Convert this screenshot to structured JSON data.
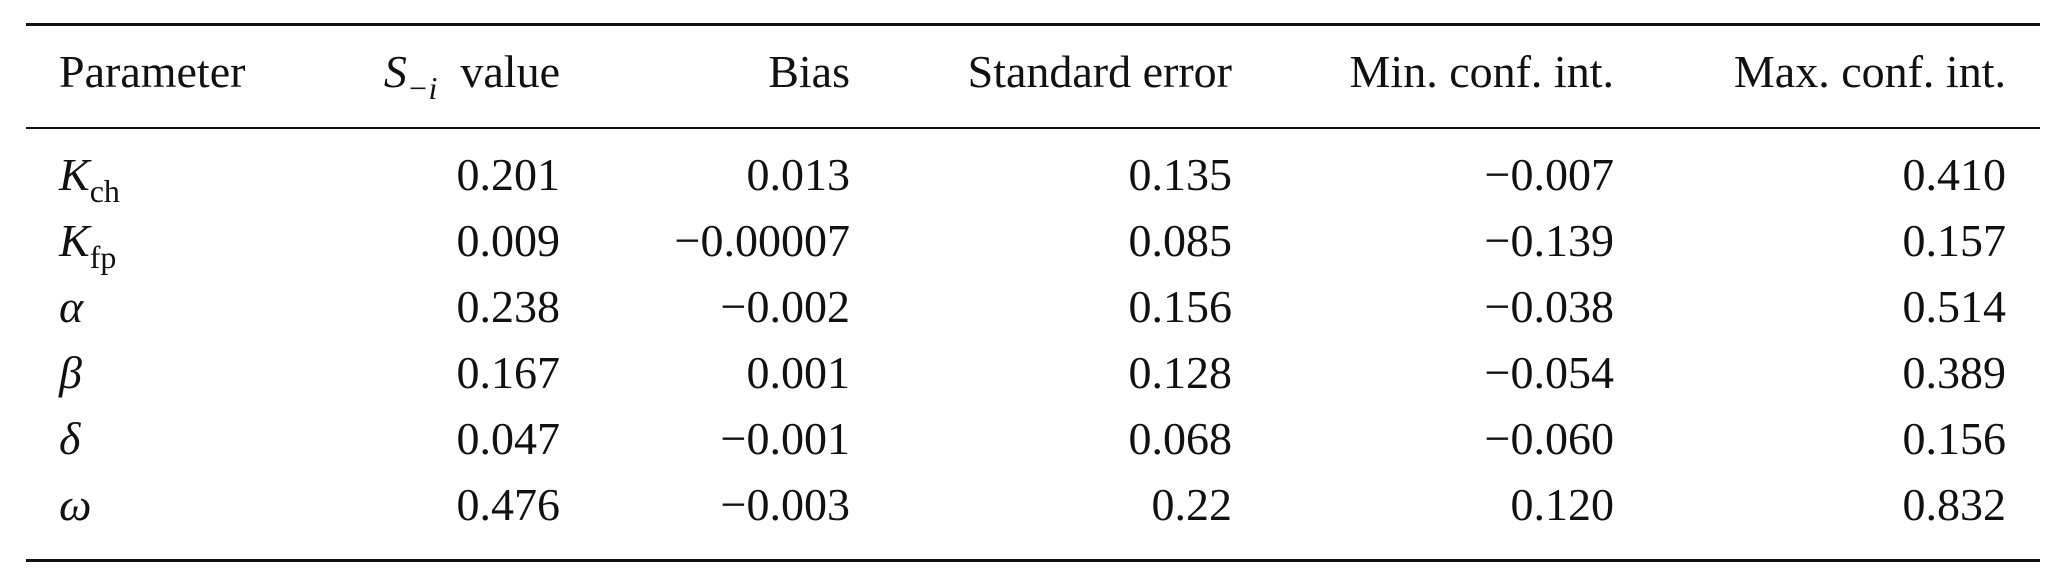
{
  "table": {
    "header": {
      "parameter": "Parameter",
      "s_value": {
        "symbol": "S",
        "subscript": "−i",
        "text": "value"
      },
      "columns": [
        "Bias",
        "Standard error",
        "Min. conf. int.",
        "Max. conf. int."
      ]
    },
    "rows": [
      {
        "parameter": {
          "symbol": "K",
          "subscript": "ch"
        },
        "values": [
          "0.201",
          "0.013",
          "0.135",
          "−0.007",
          "0.410"
        ]
      },
      {
        "parameter": {
          "symbol": "K",
          "subscript": "fp"
        },
        "values": [
          "0.009",
          "−0.00007",
          "0.085",
          "−0.139",
          "0.157"
        ]
      },
      {
        "parameter": {
          "symbol": "α"
        },
        "values": [
          "0.238",
          "−0.002",
          "0.156",
          "−0.038",
          "0.514"
        ]
      },
      {
        "parameter": {
          "symbol": "β"
        },
        "values": [
          "0.167",
          "0.001",
          "0.128",
          "−0.054",
          "0.389"
        ]
      },
      {
        "parameter": {
          "symbol": "δ"
        },
        "values": [
          "0.047",
          "−0.001",
          "0.068",
          "−0.060",
          "0.156"
        ]
      },
      {
        "parameter": {
          "symbol": "ω"
        },
        "values": [
          "0.476",
          "−0.003",
          "0.22",
          "0.120",
          "0.832"
        ]
      }
    ]
  }
}
